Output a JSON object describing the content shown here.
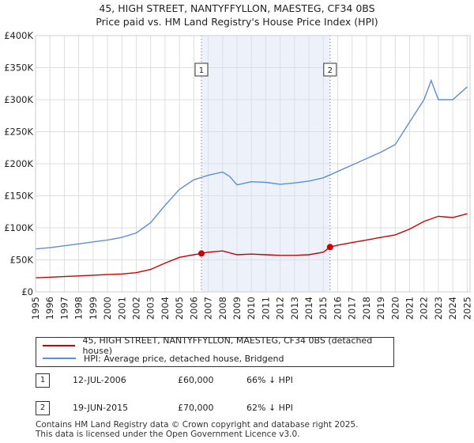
{
  "title_line1": "45, HIGH STREET, NANTYFFYLLON, MAESTEG, CF34 0BS",
  "title_line2": "Price paid vs. HM Land Registry's House Price Index (HPI)",
  "chart_data": {
    "type": "line",
    "title": "45, HIGH STREET, NANTYFFYLLON, MAESTEG, CF34 0BS — Price paid vs. HM Land Registry's House Price Index (HPI)",
    "xlim": [
      1995,
      2025.2
    ],
    "ylim": [
      0,
      400000
    ],
    "x_ticks": [
      "1995",
      "1996",
      "1997",
      "1998",
      "1999",
      "2000",
      "2001",
      "2002",
      "2003",
      "2004",
      "2005",
      "2006",
      "2007",
      "2008",
      "2009",
      "2010",
      "2011",
      "2012",
      "2013",
      "2014",
      "2015",
      "2016",
      "2017",
      "2018",
      "2019",
      "2020",
      "2021",
      "2022",
      "2023",
      "2024",
      "2025"
    ],
    "y_ticks": [
      {
        "value": 0,
        "label": "£0"
      },
      {
        "value": 50000,
        "label": "£50K"
      },
      {
        "value": 100000,
        "label": "£100K"
      },
      {
        "value": 150000,
        "label": "£150K"
      },
      {
        "value": 200000,
        "label": "£200K"
      },
      {
        "value": 250000,
        "label": "£250K"
      },
      {
        "value": 300000,
        "label": "£300K"
      },
      {
        "value": 350000,
        "label": "£350K"
      },
      {
        "value": 400000,
        "label": "£400K"
      }
    ],
    "shaded_period": [
      2006.53,
      2015.47
    ],
    "series": [
      {
        "name": "45, HIGH STREET, NANTYFFYLLON, MAESTEG, CF34 0BS (detached house)",
        "color": "#cc0000",
        "x": [
          1995,
          1996,
          1997,
          1998,
          1999,
          2000,
          2001,
          2002,
          2003,
          2004,
          2005,
          2006,
          2006.53,
          2007,
          2008,
          2009,
          2010,
          2011,
          2012,
          2013,
          2014,
          2015,
          2015.47,
          2016,
          2017,
          2018,
          2019,
          2020,
          2021,
          2022,
          2023,
          2024,
          2025
        ],
        "y": [
          22000,
          23000,
          24000,
          25000,
          26000,
          27000,
          28000,
          30000,
          35000,
          45000,
          54000,
          58000,
          60000,
          62000,
          64000,
          58000,
          59000,
          58000,
          57000,
          57000,
          58000,
          62000,
          70000,
          73000,
          77000,
          81000,
          85000,
          89000,
          98000,
          110000,
          118000,
          116000,
          122000
        ]
      },
      {
        "name": "HPI: Average price, detached house, Bridgend",
        "color": "#5b8fd6",
        "x": [
          1995,
          1996,
          1997,
          1998,
          1999,
          2000,
          2001,
          2002,
          2003,
          2004,
          2005,
          2006,
          2007,
          2008,
          2008.5,
          2009,
          2010,
          2011,
          2012,
          2013,
          2014,
          2015,
          2016,
          2017,
          2018,
          2019,
          2020,
          2021,
          2022,
          2022.5,
          2023,
          2024,
          2025
        ],
        "y": [
          67000,
          69000,
          72000,
          75000,
          78000,
          81000,
          85000,
          92000,
          108000,
          135000,
          160000,
          175000,
          182000,
          187000,
          180000,
          167000,
          172000,
          171000,
          168000,
          170000,
          173000,
          178000,
          188000,
          198000,
          208000,
          218000,
          230000,
          265000,
          300000,
          330000,
          300000,
          300000,
          320000
        ]
      }
    ],
    "sales": [
      {
        "label": "1",
        "x": 2006.53,
        "y": 60000
      },
      {
        "label": "2",
        "x": 2015.47,
        "y": 70000
      }
    ]
  },
  "legend": {
    "property_label": "45, HIGH STREET, NANTYFFYLLON, MAESTEG, CF34 0BS (detached house)",
    "hpi_label": "HPI: Average price, detached house, Bridgend"
  },
  "sales": [
    {
      "marker": "1",
      "date": "12-JUL-2006",
      "price": "£60,000",
      "hpi_diff": "66% ↓ HPI"
    },
    {
      "marker": "2",
      "date": "19-JUN-2015",
      "price": "£70,000",
      "hpi_diff": "62% ↓ HPI"
    }
  ],
  "footer": {
    "line1": "Contains HM Land Registry data © Crown copyright and database right 2025.",
    "line2": "This data is licensed under the Open Government Licence v3.0."
  }
}
